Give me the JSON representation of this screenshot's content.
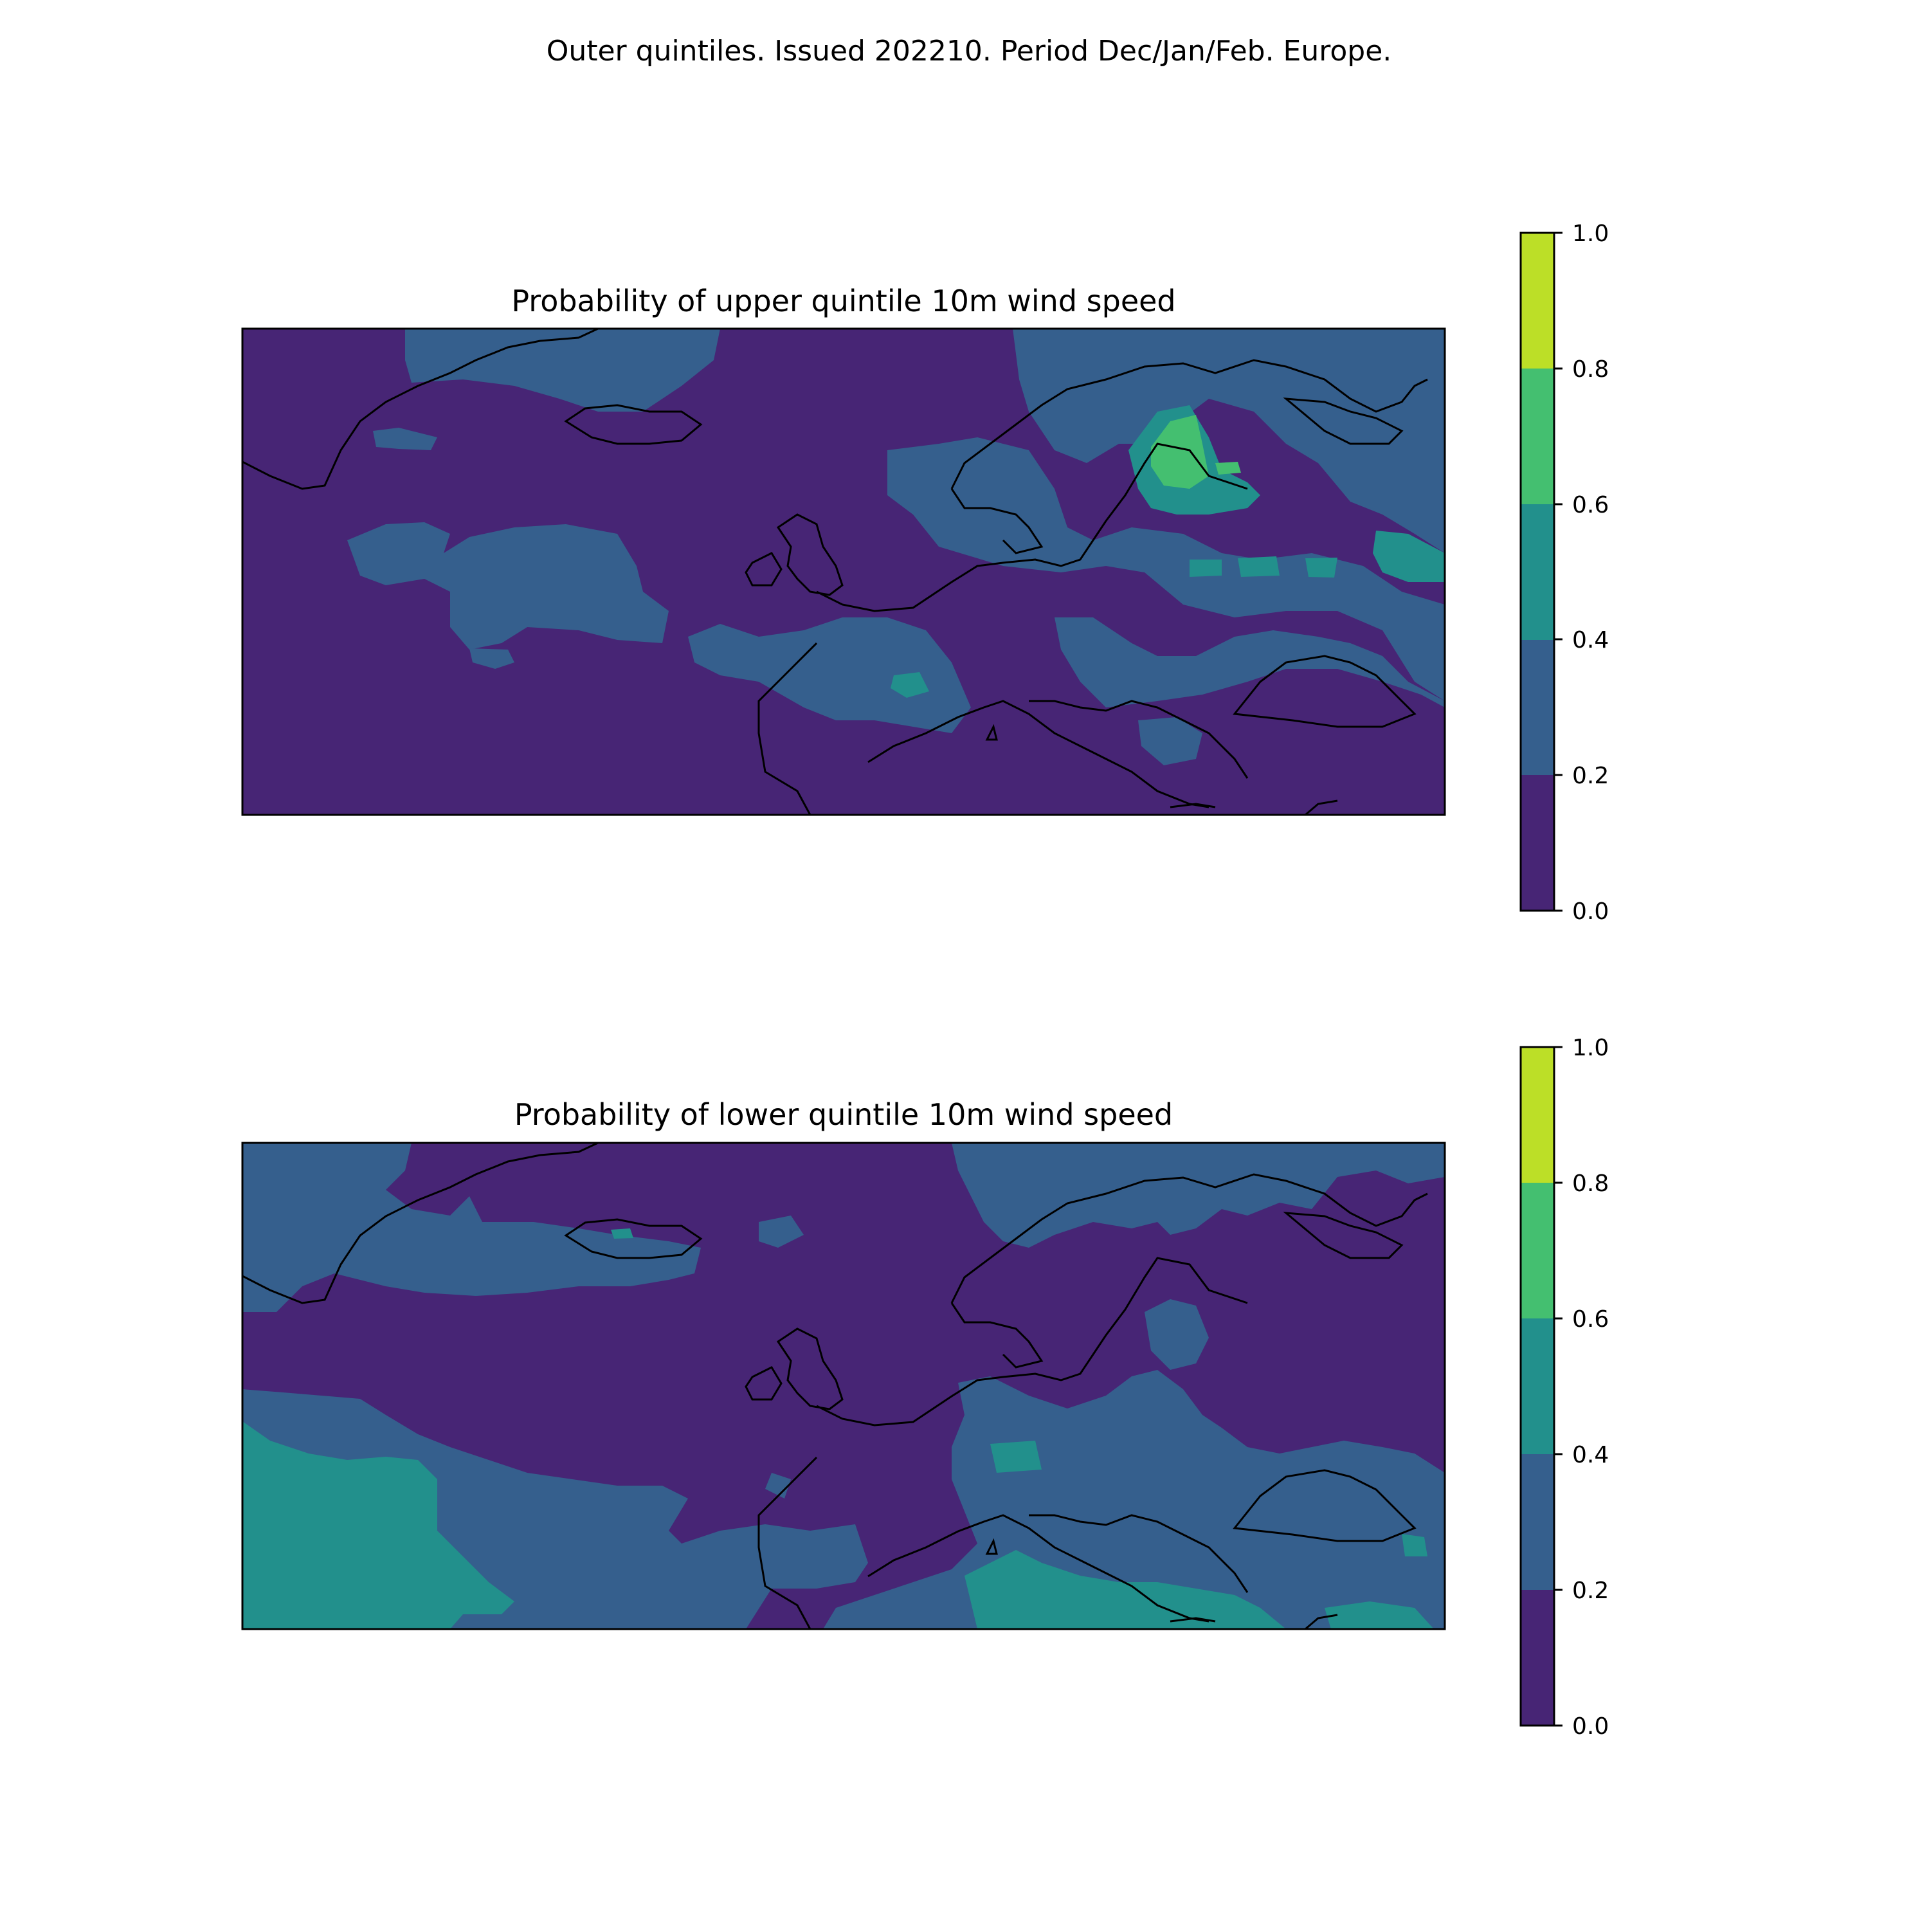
{
  "figure": {
    "title": "Outer quintiles. Issued 202210. Period Dec/Jan/Feb. Europe."
  },
  "colorscale": {
    "levels": [
      {
        "from": 0.0,
        "to": 0.2,
        "color": "#472575"
      },
      {
        "from": 0.2,
        "to": 0.4,
        "color": "#355f8d"
      },
      {
        "from": 0.4,
        "to": 0.6,
        "color": "#22908c"
      },
      {
        "from": 0.6,
        "to": 0.8,
        "color": "#44bf70"
      },
      {
        "from": 0.8,
        "to": 1.0,
        "color": "#bcdf27"
      }
    ],
    "ticks": [
      "0.0",
      "0.2",
      "0.4",
      "0.6",
      "0.8",
      "1.0"
    ]
  },
  "panels": [
    {
      "id": "upper",
      "title": "Probability of upper quintile 10m wind speed",
      "background_level": 0,
      "dominant_description": "mostly 0.0–0.2, with 0.2–0.4 over Scandinavia, central Atlantic and western Europe; 0.6–0.8 over Finland"
    },
    {
      "id": "lower",
      "title": "Probability of lower quintile 10m wind speed",
      "background_level": 0,
      "dominant_description": "mostly 0.0–0.2, with 0.2–0.4 and 0.4–0.6 over the south-western Atlantic and North Africa"
    }
  ]
}
